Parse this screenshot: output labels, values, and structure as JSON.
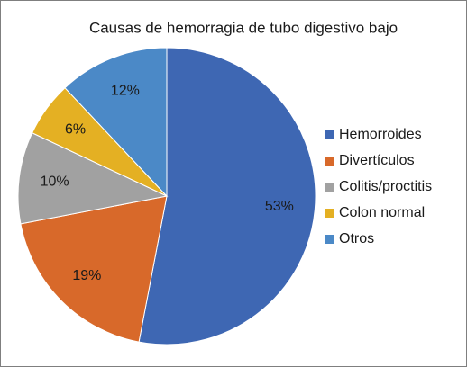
{
  "chart_data": {
    "type": "pie",
    "title": "Causas de hemorragia de tubo digestivo bajo",
    "categories": [
      "Hemorroides",
      "Divertículos",
      "Colitis/proctitis",
      "Colon normal",
      "Otros"
    ],
    "values": [
      53,
      19,
      10,
      6,
      12
    ],
    "value_labels": [
      "53%",
      "19%",
      "10%",
      "6%",
      "12%"
    ],
    "colors": [
      "#3e67b3",
      "#d8692a",
      "#a1a1a1",
      "#e4b023",
      "#4b89c7"
    ],
    "legend": "right"
  }
}
